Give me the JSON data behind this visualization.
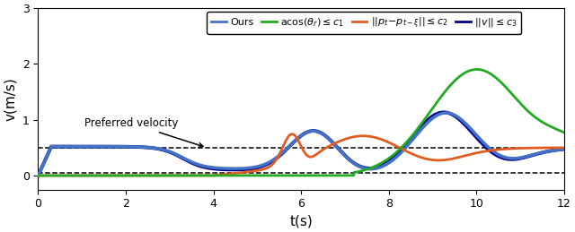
{
  "xlabel": "t(s)",
  "ylabel": "v(m/s)",
  "xlim": [
    0,
    12
  ],
  "ylim": [
    -0.25,
    3.0
  ],
  "yticks": [
    0,
    1,
    2,
    3
  ],
  "xticks": [
    0,
    2,
    4,
    6,
    8,
    10,
    12
  ],
  "preferred_velocity": 0.5,
  "zero_line": 0.05,
  "annotation_text": "Preferred velocity",
  "colors": {
    "ours": "#4472C4",
    "green": "#22AA22",
    "orange": "#E05C20",
    "dark_blue": "#00008B"
  },
  "line_width": 2.0
}
